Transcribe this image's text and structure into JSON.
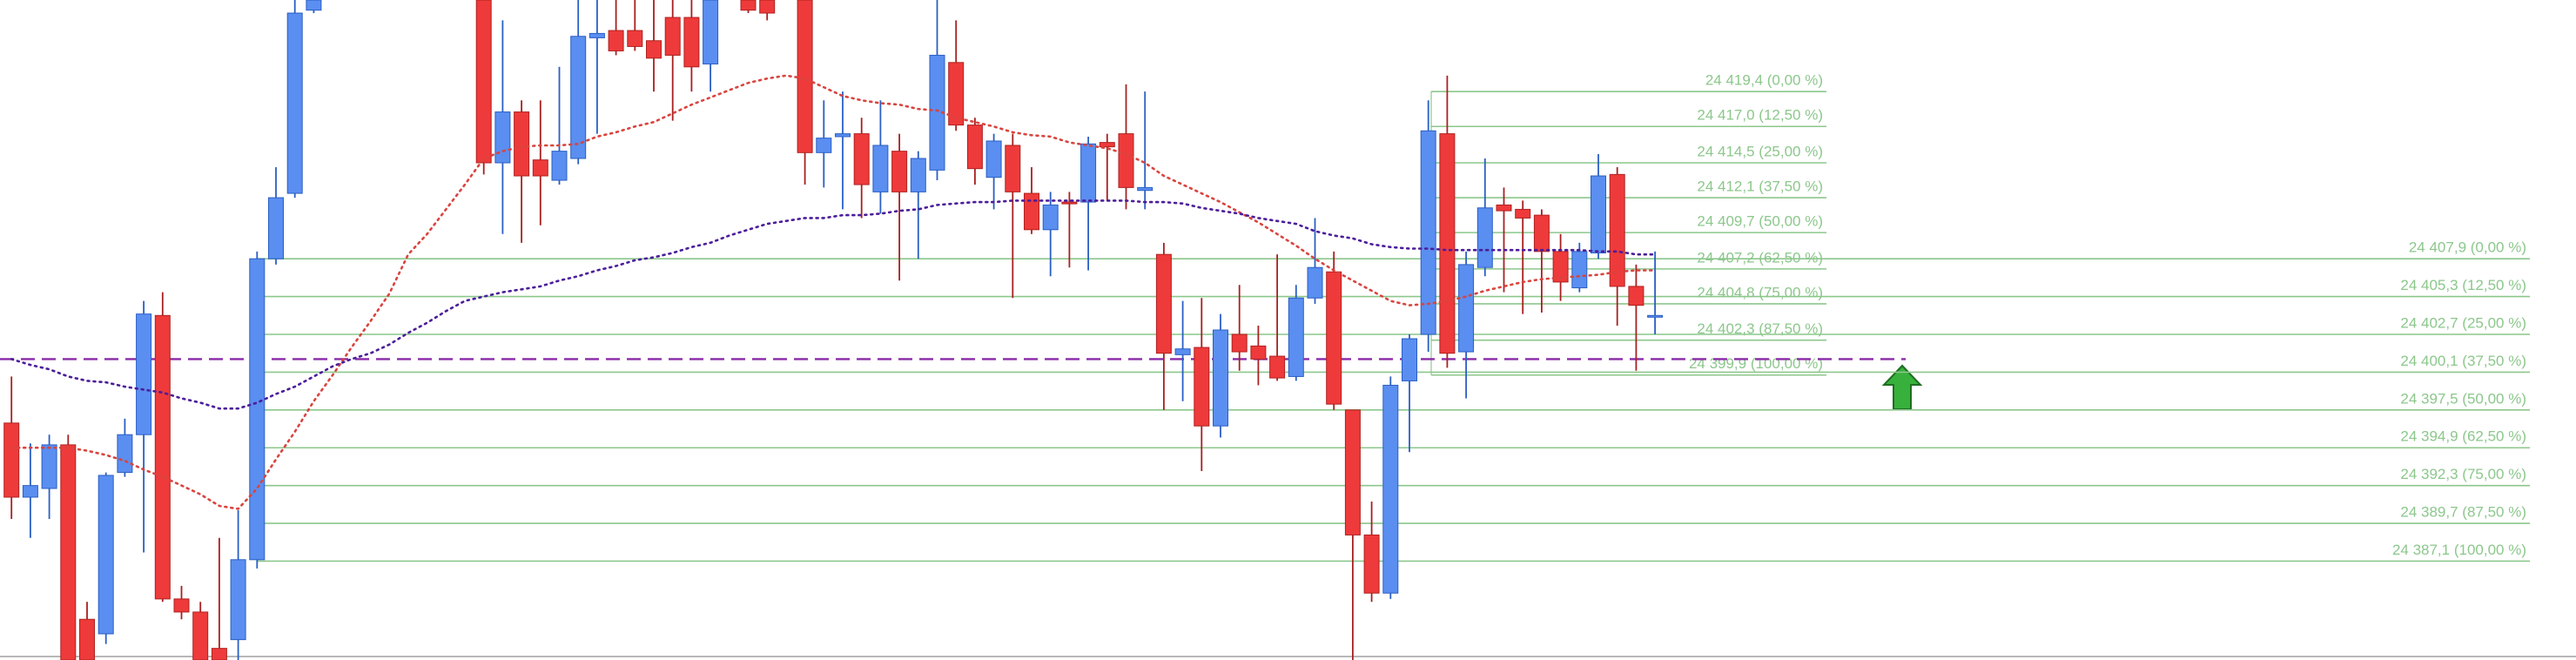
{
  "chart_data": {
    "type": "candlestick",
    "ylim": [
      24380.3,
      24425.7
    ],
    "up_color": "#5a8ef0",
    "down_color": "#ee3a3a",
    "open": [
      24396.6,
      24391.5,
      24392.1,
      24395.1,
      24383.1,
      24382.1,
      24393.2,
      24395.8,
      24404.0,
      24384.5,
      24383.6,
      24381.1,
      24381.7,
      24387.2,
      24407.9,
      24412.4,
      24425.0,
      null,
      null,
      null,
      null,
      null,
      null,
      null,
      null,
      24425.7,
      24414.5,
      24418.0,
      24414.7,
      24413.3,
      24414.8,
      24423.1,
      24423.6,
      24423.6,
      24422.9,
      24424.5,
      24424.5,
      24421.3,
      null,
      24425.7,
      24425.7,
      null,
      24425.7,
      24415.2,
      24416.3,
      24416.5,
      24412.5,
      24415.3,
      24412.5,
      24414.0,
      24421.4,
      24417.1,
      24413.5,
      24415.7,
      24412.4,
      24409.9,
      24411.8,
      24411.8,
      24415.9,
      24416.5,
      24412.6,
      24408.2,
      24401.3,
      24401.8,
      24396.4,
      24402.7,
      24401.9,
      24401.2,
      24399.8,
      24405.2,
      24407.0,
      24397.5,
      24388.9,
      24384.9,
      24399.5,
      24402.7,
      24416.5,
      24401.5,
      24407.3,
      24411.6,
      24411.3,
      24410.9,
      24408.4,
      24405.9,
      24408.3,
      24413.7,
      24406.0,
      24404.0
    ],
    "high": [
      24399.8,
      24395.2,
      24395.8,
      24395.8,
      24384.3,
      24393.2,
      24396.9,
      24405.0,
      24405.6,
      24385.4,
      24384.3,
      24388.7,
      24390.6,
      24408.4,
      24414.2,
      24425.7,
      24425.7,
      null,
      null,
      null,
      null,
      null,
      null,
      null,
      null,
      24425.7,
      24424.3,
      24418.8,
      24418.8,
      24421.1,
      24425.7,
      24425.7,
      24425.7,
      24425.7,
      24425.7,
      24425.7,
      24425.7,
      24425.7,
      null,
      24425.7,
      24425.7,
      null,
      24425.7,
      24418.8,
      24419.4,
      24417.6,
      24418.8,
      24416.5,
      24415.3,
      24425.7,
      24424.3,
      24417.6,
      24416.5,
      24416.5,
      24414.2,
      24412.5,
      24412.5,
      24416.3,
      24416.5,
      24419.9,
      24419.4,
      24409.0,
      24405.0,
      24405.2,
      24404.1,
      24406.1,
      24403.3,
      24408.2,
      24406.1,
      24410.7,
      24408.4,
      24397.5,
      24391.2,
      24399.8,
      24402.7,
      24418.8,
      24420.5,
      24408.4,
      24414.8,
      24412.8,
      24411.9,
      24411.3,
      24409.6,
      24409.0,
      24415.1,
      24414.2,
      24407.5,
      24408.4
    ],
    "low": [
      24390.0,
      24388.7,
      24390.0,
      24380.3,
      24380.3,
      24381.4,
      24392.9,
      24387.7,
      24384.3,
      24383.1,
      24380.3,
      24380.3,
      24380.3,
      24386.6,
      24407.5,
      24412.1,
      24424.8,
      null,
      null,
      null,
      null,
      null,
      null,
      null,
      null,
      24413.7,
      24409.6,
      24409.0,
      24410.2,
      24413.0,
      24414.4,
      24416.5,
      24421.9,
      24422.2,
      24419.4,
      24417.4,
      24419.4,
      24419.4,
      null,
      24424.8,
      24424.3,
      null,
      24413.0,
      24412.8,
      24411.3,
      24410.7,
      24411.0,
      24406.4,
      24407.9,
      24413.3,
      24416.7,
      24413.0,
      24411.3,
      24405.2,
      24409.6,
      24406.7,
      24407.3,
      24407.1,
      24411.9,
      24411.3,
      24411.3,
      24397.5,
      24398.1,
      24393.3,
      24395.6,
      24400.2,
      24399.2,
      24399.5,
      24399.5,
      24404.8,
      24397.5,
      24380.3,
      24384.3,
      24384.5,
      24394.6,
      24401.5,
      24400.4,
      24398.3,
      24406.7,
      24405.6,
      24404.1,
      24404.2,
      24405.0,
      24405.6,
      24407.9,
      24403.3,
      24400.2,
      24402.7
    ],
    "close": [
      24391.5,
      24392.3,
      24395.1,
      24380.3,
      24380.3,
      24393.0,
      24395.8,
      24404.1,
      24384.5,
      24383.6,
      24380.3,
      24380.3,
      24387.2,
      24407.9,
      24412.1,
      24424.8,
      24425.7,
      null,
      null,
      null,
      null,
      null,
      null,
      null,
      null,
      24414.5,
      24418.0,
      24413.6,
      24413.6,
      24415.3,
      24423.2,
      24423.4,
      24422.2,
      24422.5,
      24421.7,
      24421.9,
      24421.1,
      24425.7,
      null,
      24425.0,
      24424.8,
      null,
      24415.2,
      24416.2,
      24416.5,
      24413.0,
      24415.7,
      24412.5,
      24414.8,
      24421.9,
      24417.1,
      24414.1,
      24416.0,
      24412.5,
      24409.9,
      24411.6,
      24411.7,
      24415.8,
      24415.6,
      24412.8,
      24412.8,
      24401.4,
      24401.7,
      24396.4,
      24403.0,
      24401.5,
      24401.0,
      24399.7,
      24405.2,
      24407.3,
      24397.9,
      24388.9,
      24384.9,
      24399.2,
      24402.4,
      24416.7,
      24401.4,
      24407.5,
      24411.4,
      24411.2,
      24410.7,
      24408.4,
      24406.3,
      24408.4,
      24413.6,
      24406.0,
      24404.7,
      24404.0
    ],
    "indicators": [
      {
        "color": "#d9443f",
        "values": [
          24394.9,
          24394.9,
          24394.9,
          24394.9,
          24394.7,
          24394.4,
          24394.0,
          24393.4,
          24392.9,
          24392.3,
          24391.7,
          24390.9,
          24390.7,
          24392.1,
          24394.1,
          24396.0,
          24398.1,
          24399.9,
          24401.8,
          24403.6,
          24405.5,
          24408.2,
          24409.6,
          24411.3,
          24413.0,
          24414.8,
          24415.3,
          24415.6,
          24415.7,
          24415.7,
          24415.8,
          24416.3,
          24416.6,
          24417.0,
          24417.3,
          24417.9,
          24418.5,
          24419.0,
          24419.5,
          24420.0,
          24420.3,
          24420.5,
          24420.3,
          24419.7,
          24419.1,
          24418.8,
          24418.6,
          24418.5,
          24418.2,
          24418.1,
          24417.6,
          24417.3,
          24417.0,
          24416.6,
          24416.4,
          24416.3,
          24415.9,
          24415.7,
          24415.5,
          24415.1,
          24414.5,
          24413.6,
          24413.0,
          24412.4,
          24411.8,
          24411.1,
          24410.4,
          24409.6,
          24408.8,
          24407.9,
          24407.1,
          24406.4,
          24405.7,
          24405.0,
          24404.7,
          24404.8,
          24405.0,
          24405.3,
          24405.7,
          24406.0,
          24406.3,
          24406.5,
          24406.6,
          24406.7,
          24406.8,
          24407.0,
          24407.1,
          24407.1
        ]
      },
      {
        "color": "#4b1d9a",
        "values": [
          24401.0,
          24400.6,
          24400.3,
          24399.8,
          24399.5,
          24399.4,
          24399.1,
          24398.9,
          24398.7,
          24398.3,
          24398.0,
          24397.6,
          24397.6,
          24398.0,
          24398.6,
          24399.1,
          24399.8,
          24400.5,
          24401.0,
          24401.4,
          24402.0,
          24402.8,
          24403.5,
          24404.3,
          24405.0,
          24405.3,
          24405.6,
          24405.8,
          24406.0,
          24406.4,
          24406.7,
          24407.1,
          24407.4,
          24407.8,
          24408.0,
          24408.3,
          24408.7,
          24409.0,
          24409.5,
          24409.9,
          24410.3,
          24410.5,
          24410.7,
          24410.7,
          24410.9,
          24410.9,
          24411.0,
          24411.2,
          24411.3,
          24411.6,
          24411.7,
          24411.8,
          24411.8,
          24411.9,
          24411.9,
          24411.9,
          24411.9,
          24411.9,
          24411.9,
          24411.9,
          24411.8,
          24411.8,
          24411.7,
          24411.4,
          24411.2,
          24411.0,
          24410.7,
          24410.5,
          24410.3,
          24409.8,
          24409.5,
          24409.3,
          24408.9,
          24408.7,
          24408.6,
          24408.6,
          24408.5,
          24408.5,
          24408.5,
          24408.5,
          24408.5,
          24408.5,
          24408.5,
          24408.5,
          24408.4,
          24408.4,
          24408.2,
          24408.2
        ]
      }
    ],
    "horizontal_line": {
      "value": 24401.0,
      "color": "#8a2aa8"
    },
    "fibonacci": [
      {
        "color": "#8cc78c",
        "levels": [
          {
            "value": 24419.4,
            "label": "24 419,4 (0,00 %)"
          },
          {
            "value": 24417.0,
            "label": "24 417,0 (12,50 %)"
          },
          {
            "value": 24414.5,
            "label": "24 414,5 (25,00 %)"
          },
          {
            "value": 24412.1,
            "label": "24 412,1 (37,50 %)"
          },
          {
            "value": 24409.7,
            "label": "24 409,7 (50,00 %)"
          },
          {
            "value": 24407.2,
            "label": "24 407,2 (62,50 %)"
          },
          {
            "value": 24404.8,
            "label": "24 404,8 (75,00 %)"
          },
          {
            "value": 24402.3,
            "label": "24 402,3 (87,50 %)"
          },
          {
            "value": 24399.9,
            "label": "24 399,9 (100,00 %)"
          }
        ]
      },
      {
        "color": "#8cc78c",
        "levels": [
          {
            "value": 24407.9,
            "label": "24 407,9 (0,00 %)"
          },
          {
            "value": 24405.3,
            "label": "24 405,3 (12,50 %)"
          },
          {
            "value": 24402.7,
            "label": "24 402,7 (25,00 %)"
          },
          {
            "value": 24400.1,
            "label": "24 400,1 (37,50 %)"
          },
          {
            "value": 24397.5,
            "label": "24 397,5 (50,00 %)"
          },
          {
            "value": 24394.9,
            "label": "24 394,9 (62,50 %)"
          },
          {
            "value": 24392.3,
            "label": "24 392,3 (75,00 %)"
          },
          {
            "value": 24389.7,
            "label": "24 389,7 (87,50 %)"
          },
          {
            "value": 24387.1,
            "label": "24 387,1 (100,00 %)"
          }
        ]
      }
    ]
  }
}
